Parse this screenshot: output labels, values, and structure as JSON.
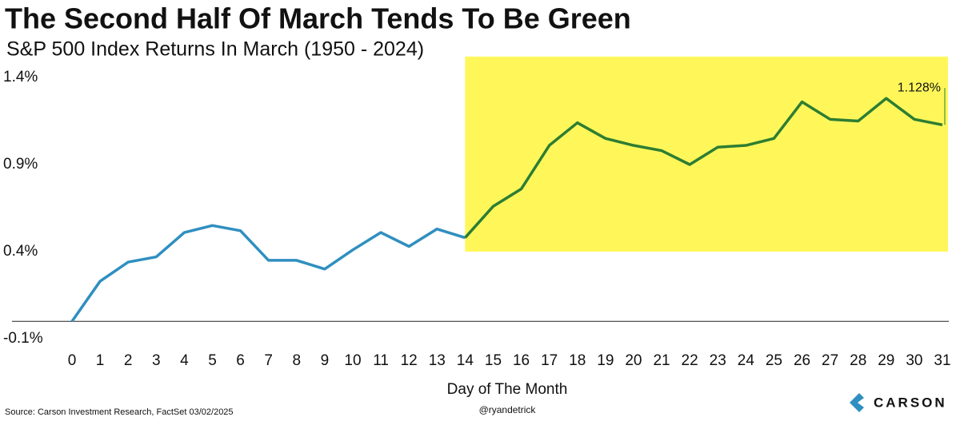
{
  "chart_data": {
    "type": "line",
    "title": "The Second Half Of March Tends To Be Green",
    "subtitle": "S&P 500 Index Returns In March (1950 - 2024)",
    "x_label": "Day of The Month",
    "x": [
      0,
      1,
      2,
      3,
      4,
      5,
      6,
      7,
      8,
      9,
      10,
      11,
      12,
      13,
      14,
      15,
      16,
      17,
      18,
      19,
      20,
      21,
      22,
      23,
      24,
      25,
      26,
      27,
      28,
      29,
      30,
      31
    ],
    "values": [
      0,
      0.23,
      0.34,
      0.37,
      0.51,
      0.55,
      0.52,
      0.35,
      0.35,
      0.3,
      0.41,
      0.51,
      0.43,
      0.53,
      0.48,
      0.66,
      0.76,
      1.01,
      1.14,
      1.05,
      1.01,
      0.98,
      0.9,
      1.0,
      1.01,
      1.05,
      1.26,
      1.16,
      1.15,
      1.28,
      1.16,
      1.128
    ],
    "color": "#2f8fc0",
    "highlight": {
      "xlim": [
        14,
        31.2
      ],
      "ylim": [
        0.4,
        1.52
      ],
      "fill": "#fff75a",
      "line_color": "#2e7d32"
    },
    "annotation": "1.128%",
    "xlim": [
      0,
      31
    ],
    "xticks": [
      0,
      1,
      2,
      3,
      4,
      5,
      6,
      7,
      8,
      9,
      10,
      11,
      12,
      13,
      14,
      15,
      16,
      17,
      18,
      19,
      20,
      21,
      22,
      23,
      24,
      25,
      26,
      27,
      28,
      29,
      30,
      31
    ],
    "ylim": [
      -0.1,
      1.4
    ],
    "yticks": [
      {
        "value": -0.1,
        "label": "-0.1%"
      },
      {
        "value": 0.4,
        "label": "0.4%"
      },
      {
        "value": 0.9,
        "label": "0.9%"
      },
      {
        "value": 1.4,
        "label": "1.4%"
      }
    ],
    "source": "Source: Carson Investment Research, FactSet 03/02/2025",
    "handle": "@ryandetrick",
    "logo": "CARSON"
  }
}
